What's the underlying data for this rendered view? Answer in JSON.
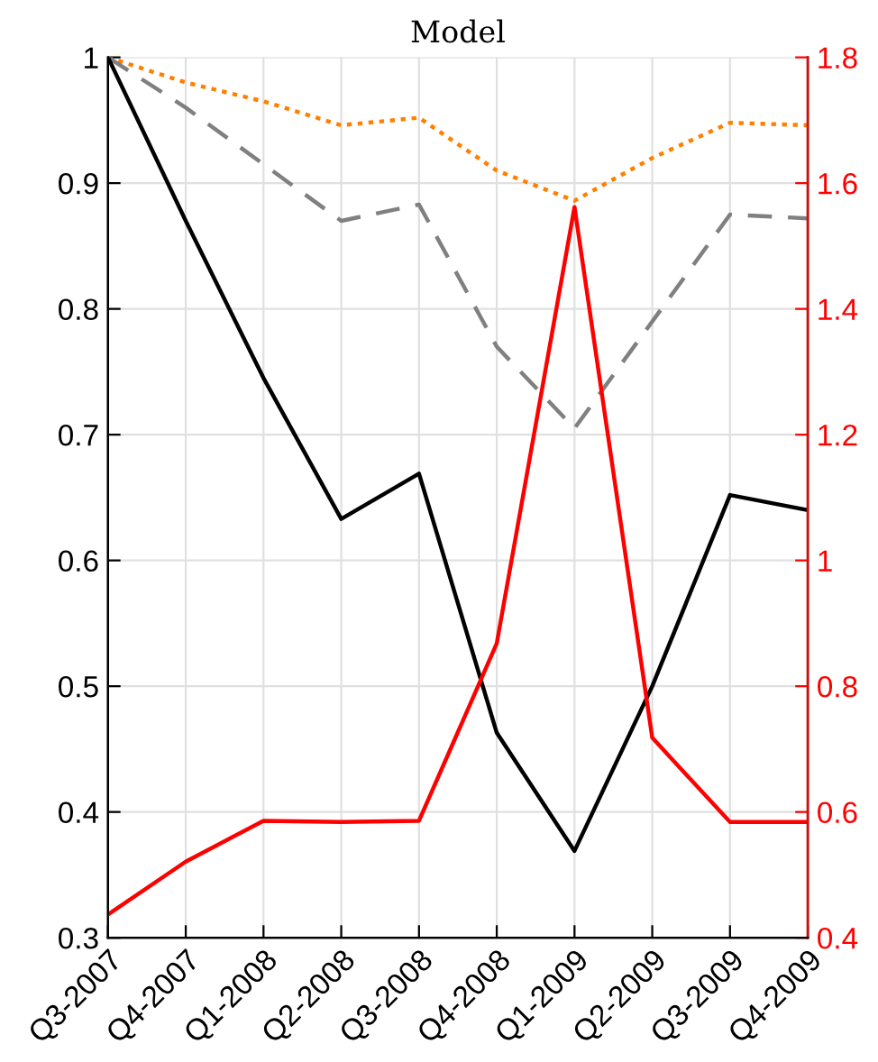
{
  "chart_data": {
    "type": "line",
    "title": "Model",
    "categories": [
      "Q3-2007",
      "Q4-2007",
      "Q1-2008",
      "Q2-2008",
      "Q3-2008",
      "Q4-2008",
      "Q1-2009",
      "Q2-2009",
      "Q3-2009",
      "Q4-2009"
    ],
    "series": [
      {
        "color": "#ff8000",
        "line_style": "dotted",
        "values": [
          1.0,
          0.98,
          0.965,
          0.946,
          0.952,
          0.91,
          0.886,
          0.92,
          0.948,
          0.946
        ]
      },
      {
        "color": "#808080",
        "line_style": "dashed",
        "values": [
          1.0,
          0.96,
          0.915,
          0.87,
          0.883,
          0.77,
          0.705,
          0.79,
          0.875,
          0.872
        ]
      },
      {
        "color": "#000000",
        "line_style": "solid",
        "values": [
          1.0,
          0.87,
          0.745,
          0.633,
          0.669,
          0.463,
          0.369,
          0.5,
          0.652,
          0.64
        ]
      },
      {
        "color": "#ff0000",
        "line_style": "solid",
        "axis": "y2",
        "values": [
          0.437,
          0.521,
          0.586,
          0.584,
          0.586,
          0.868,
          1.562,
          0.718,
          0.584,
          0.584
        ]
      }
    ],
    "ylim": [
      0.3,
      1
    ],
    "yticks": [
      0.3,
      0.4,
      0.5,
      0.6,
      0.7,
      0.8,
      0.9,
      1
    ],
    "y2lim": [
      0.4,
      1.8
    ],
    "y2ticks": [
      0.4,
      0.6,
      0.8,
      1,
      1.2,
      1.4,
      1.6,
      1.8
    ],
    "grid": true,
    "legend": false,
    "marker": "none"
  }
}
